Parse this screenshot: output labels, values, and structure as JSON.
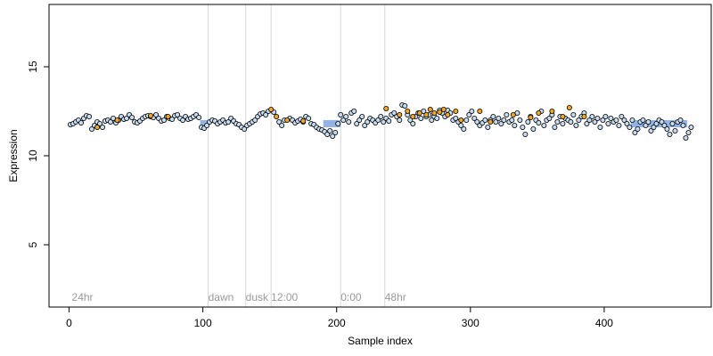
{
  "chart_data": {
    "type": "scatter",
    "title": "",
    "xlabel": "Sample index",
    "ylabel": "Expression",
    "xlim": [
      -15,
      480
    ],
    "ylim": [
      1.5,
      18.5
    ],
    "x_ticks": [
      0,
      100,
      200,
      300,
      400
    ],
    "y_ticks": [
      5,
      10,
      15
    ],
    "grid": false,
    "colors": {
      "point_light": "#c8dcf0",
      "point_orange": "#f5a623",
      "point_edge": "#000000",
      "band": "#7ea6e0",
      "annotation_line": "#d8d8d8",
      "annotation_text": "#9a9a9a"
    },
    "annotations": [
      {
        "x": 2,
        "label": "24hr"
      },
      {
        "x": 104,
        "label": "dawn"
      },
      {
        "x": 132,
        "label": "dusk"
      },
      {
        "x": 151,
        "label": "12:00"
      },
      {
        "x": 203,
        "label": "0:00"
      },
      {
        "x": 236,
        "label": "48hr"
      }
    ],
    "annotation_lines": [
      104,
      132,
      151,
      203,
      236
    ],
    "band_segments": [
      {
        "x0": 98,
        "x1": 104,
        "y": 11.8
      },
      {
        "x0": 190,
        "x1": 203,
        "y": 11.8
      },
      {
        "x0": 420,
        "x1": 462,
        "y": 11.8
      }
    ],
    "series": [
      {
        "name": "",
        "color": "#c8dcf0",
        "points": [
          [
            1,
            11.75
          ],
          [
            3,
            11.8
          ],
          [
            5,
            11.9
          ],
          [
            7,
            12.0
          ],
          [
            9,
            11.85
          ],
          [
            11,
            12.1
          ],
          [
            13,
            12.25
          ],
          [
            15,
            12.2
          ],
          [
            17,
            11.5
          ],
          [
            19,
            11.7
          ],
          [
            21,
            11.9
          ],
          [
            23,
            11.8
          ],
          [
            25,
            11.6
          ],
          [
            27,
            11.95
          ],
          [
            29,
            12.0
          ],
          [
            31,
            11.9
          ],
          [
            33,
            12.1
          ],
          [
            35,
            11.85
          ],
          [
            37,
            12.0
          ],
          [
            39,
            12.2
          ],
          [
            41,
            12.05
          ],
          [
            43,
            12.1
          ],
          [
            45,
            12.3
          ],
          [
            47,
            12.15
          ],
          [
            49,
            11.9
          ],
          [
            51,
            11.85
          ],
          [
            53,
            11.95
          ],
          [
            55,
            12.1
          ],
          [
            57,
            12.2
          ],
          [
            59,
            12.25
          ],
          [
            61,
            12.2
          ],
          [
            63,
            12.15
          ],
          [
            65,
            12.3
          ],
          [
            67,
            12.1
          ],
          [
            69,
            11.95
          ],
          [
            71,
            12.0
          ],
          [
            73,
            12.2
          ],
          [
            75,
            12.1
          ],
          [
            77,
            12.05
          ],
          [
            79,
            12.25
          ],
          [
            81,
            12.3
          ],
          [
            83,
            12.1
          ],
          [
            85,
            12.0
          ],
          [
            87,
            12.2
          ],
          [
            89,
            12.05
          ],
          [
            91,
            12.1
          ],
          [
            93,
            12.2
          ],
          [
            95,
            12.3
          ],
          [
            97,
            12.15
          ],
          [
            99,
            11.6
          ],
          [
            101,
            11.55
          ],
          [
            103,
            11.7
          ],
          [
            105,
            11.9
          ],
          [
            107,
            12.0
          ],
          [
            109,
            11.95
          ],
          [
            111,
            11.8
          ],
          [
            113,
            11.9
          ],
          [
            115,
            12.0
          ],
          [
            117,
            11.85
          ],
          [
            119,
            11.9
          ],
          [
            121,
            12.1
          ],
          [
            123,
            11.95
          ],
          [
            125,
            11.8
          ],
          [
            127,
            11.75
          ],
          [
            129,
            11.6
          ],
          [
            131,
            11.5
          ],
          [
            133,
            11.7
          ],
          [
            135,
            11.8
          ],
          [
            137,
            11.9
          ],
          [
            139,
            12.0
          ],
          [
            141,
            12.2
          ],
          [
            143,
            12.35
          ],
          [
            145,
            12.4
          ],
          [
            147,
            12.3
          ],
          [
            149,
            12.5
          ],
          [
            153,
            12.45
          ],
          [
            157,
            11.9
          ],
          [
            159,
            11.7
          ],
          [
            161,
            12.0
          ],
          [
            165,
            12.1
          ],
          [
            167,
            12.0
          ],
          [
            169,
            11.85
          ],
          [
            171,
            11.95
          ],
          [
            173,
            12.05
          ],
          [
            175,
            11.9
          ],
          [
            177,
            12.2
          ],
          [
            179,
            12.1
          ],
          [
            181,
            11.8
          ],
          [
            183,
            11.75
          ],
          [
            185,
            11.6
          ],
          [
            187,
            11.5
          ],
          [
            189,
            11.45
          ],
          [
            191,
            11.35
          ],
          [
            193,
            11.2
          ],
          [
            195,
            11.4
          ],
          [
            197,
            11.1
          ],
          [
            199,
            11.3
          ],
          [
            201,
            11.8
          ],
          [
            203,
            12.3
          ],
          [
            205,
            12.0
          ],
          [
            207,
            12.2
          ],
          [
            209,
            11.9
          ],
          [
            211,
            12.4
          ],
          [
            213,
            12.5
          ],
          [
            215,
            11.8
          ],
          [
            217,
            12.0
          ],
          [
            219,
            12.2
          ],
          [
            221,
            11.7
          ],
          [
            223,
            11.9
          ],
          [
            225,
            12.1
          ],
          [
            227,
            12.0
          ],
          [
            229,
            11.85
          ],
          [
            231,
            12.0
          ],
          [
            233,
            12.2
          ],
          [
            235,
            11.9
          ],
          [
            237,
            12.1
          ],
          [
            239,
            11.95
          ],
          [
            241,
            12.3
          ],
          [
            243,
            12.4
          ],
          [
            245,
            12.2
          ],
          [
            247,
            12.0
          ],
          [
            249,
            12.85
          ],
          [
            251,
            12.8
          ],
          [
            253,
            12.3
          ],
          [
            255,
            12.0
          ],
          [
            257,
            11.8
          ],
          [
            259,
            12.2
          ],
          [
            261,
            12.4
          ],
          [
            263,
            12.1
          ],
          [
            265,
            12.5
          ],
          [
            267,
            12.2
          ],
          [
            269,
            12.3
          ],
          [
            271,
            12.0
          ],
          [
            273,
            12.2
          ],
          [
            275,
            12.1
          ],
          [
            277,
            12.55
          ],
          [
            279,
            12.4
          ],
          [
            281,
            12.2
          ],
          [
            283,
            12.55
          ],
          [
            285,
            12.4
          ],
          [
            287,
            12.0
          ],
          [
            289,
            12.1
          ],
          [
            291,
            11.9
          ],
          [
            293,
            11.7
          ],
          [
            295,
            11.5
          ],
          [
            297,
            12.0
          ],
          [
            299,
            12.3
          ],
          [
            301,
            12.5
          ],
          [
            303,
            12.1
          ],
          [
            305,
            11.9
          ],
          [
            307,
            11.7
          ],
          [
            309,
            11.85
          ],
          [
            311,
            12.0
          ],
          [
            313,
            11.6
          ],
          [
            315,
            12.0
          ],
          [
            317,
            12.2
          ],
          [
            319,
            11.9
          ],
          [
            321,
            12.1
          ],
          [
            323,
            11.8
          ],
          [
            325,
            12.0
          ],
          [
            327,
            12.3
          ],
          [
            329,
            11.9
          ],
          [
            331,
            12.0
          ],
          [
            333,
            11.7
          ],
          [
            335,
            12.4
          ],
          [
            337,
            12.0
          ],
          [
            339,
            11.6
          ],
          [
            341,
            11.2
          ],
          [
            343,
            11.9
          ],
          [
            345,
            12.2
          ],
          [
            347,
            11.5
          ],
          [
            349,
            12.0
          ],
          [
            351,
            11.85
          ],
          [
            353,
            12.5
          ],
          [
            355,
            11.7
          ],
          [
            357,
            12.0
          ],
          [
            359,
            12.1
          ],
          [
            361,
            12.3
          ],
          [
            363,
            11.6
          ],
          [
            365,
            11.9
          ],
          [
            367,
            12.2
          ],
          [
            369,
            11.8
          ],
          [
            371,
            12.1
          ],
          [
            373,
            12.0
          ],
          [
            375,
            11.9
          ],
          [
            377,
            12.3
          ],
          [
            379,
            11.7
          ],
          [
            381,
            12.0
          ],
          [
            383,
            12.2
          ],
          [
            385,
            12.4
          ],
          [
            387,
            11.8
          ],
          [
            389,
            12.0
          ],
          [
            391,
            12.2
          ],
          [
            393,
            11.9
          ],
          [
            395,
            12.1
          ],
          [
            397,
            11.6
          ],
          [
            399,
            12.0
          ],
          [
            401,
            12.2
          ],
          [
            403,
            11.8
          ],
          [
            405,
            12.1
          ],
          [
            407,
            11.9
          ],
          [
            409,
            12.0
          ],
          [
            411,
            11.7
          ],
          [
            413,
            12.2
          ],
          [
            415,
            12.0
          ],
          [
            417,
            11.8
          ],
          [
            419,
            11.6
          ],
          [
            421,
            12.0
          ],
          [
            423,
            11.3
          ],
          [
            425,
            11.5
          ],
          [
            427,
            11.9
          ],
          [
            429,
            12.0
          ],
          [
            431,
            11.7
          ],
          [
            433,
            11.9
          ],
          [
            435,
            11.4
          ],
          [
            437,
            11.6
          ],
          [
            439,
            11.8
          ],
          [
            441,
            12.0
          ],
          [
            443,
            11.9
          ],
          [
            445,
            11.7
          ],
          [
            447,
            11.5
          ],
          [
            449,
            11.2
          ],
          [
            451,
            11.8
          ],
          [
            453,
            11.4
          ],
          [
            455,
            11.9
          ],
          [
            457,
            12.0
          ],
          [
            459,
            11.7
          ],
          [
            461,
            11.0
          ],
          [
            463,
            11.3
          ],
          [
            465,
            11.6
          ]
        ]
      },
      {
        "name": "",
        "color": "#f5a623",
        "points": [
          [
            21,
            11.6
          ],
          [
            36,
            12.0
          ],
          [
            61,
            12.25
          ],
          [
            74,
            12.2
          ],
          [
            151,
            12.6
          ],
          [
            155,
            12.2
          ],
          [
            163,
            12.0
          ],
          [
            175,
            11.95
          ],
          [
            237,
            12.65
          ],
          [
            247,
            12.3
          ],
          [
            253,
            12.5
          ],
          [
            257,
            12.2
          ],
          [
            262,
            12.4
          ],
          [
            267,
            12.3
          ],
          [
            270,
            12.6
          ],
          [
            273,
            12.4
          ],
          [
            277,
            12.45
          ],
          [
            280,
            12.6
          ],
          [
            283,
            12.3
          ],
          [
            289,
            12.5
          ],
          [
            293,
            12.0
          ],
          [
            307,
            12.5
          ],
          [
            315,
            11.9
          ],
          [
            332,
            12.3
          ],
          [
            345,
            12.15
          ],
          [
            351,
            12.4
          ],
          [
            361,
            12.5
          ],
          [
            369,
            12.2
          ],
          [
            374,
            12.7
          ],
          [
            385,
            12.2
          ]
        ]
      }
    ]
  }
}
